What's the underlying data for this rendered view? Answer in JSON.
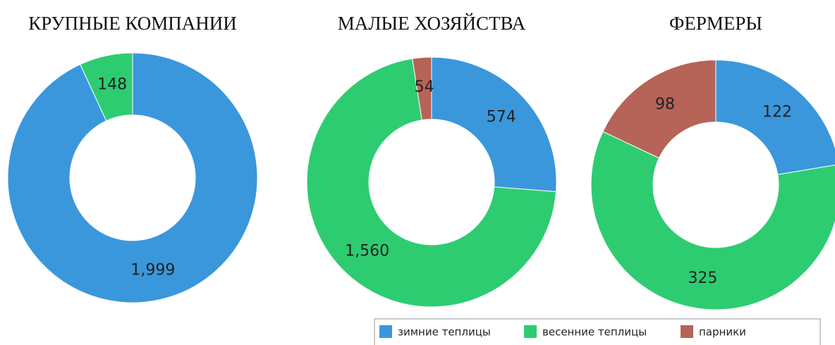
{
  "chart_data": [
    {
      "type": "pie",
      "title": "КРУПНЫЕ КОМПАНИИ",
      "categories": [
        "зимние теплицы",
        "весенние теплицы"
      ],
      "values": [
        1999,
        148
      ],
      "value_labels": [
        "1,999",
        "148"
      ],
      "colors": [
        "#3a97dc",
        "#2ecc71"
      ]
    },
    {
      "type": "pie",
      "title": "МАЛЫЕ ХОЗЯЙСТВА",
      "categories": [
        "зимние теплицы",
        "весенние теплицы",
        "парники"
      ],
      "values": [
        574,
        1560,
        54
      ],
      "value_labels": [
        "574",
        "1,560",
        "54"
      ],
      "colors": [
        "#3a97dc",
        "#2ecc71",
        "#b66358"
      ]
    },
    {
      "type": "pie",
      "title": "ФЕРМЕРЫ",
      "categories": [
        "зимние теплицы",
        "весенние теплицы",
        "парники"
      ],
      "values": [
        122,
        325,
        98
      ],
      "colors": [
        "#3a97dc",
        "#2ecc71",
        "#b66358"
      ]
    }
  ]
}
